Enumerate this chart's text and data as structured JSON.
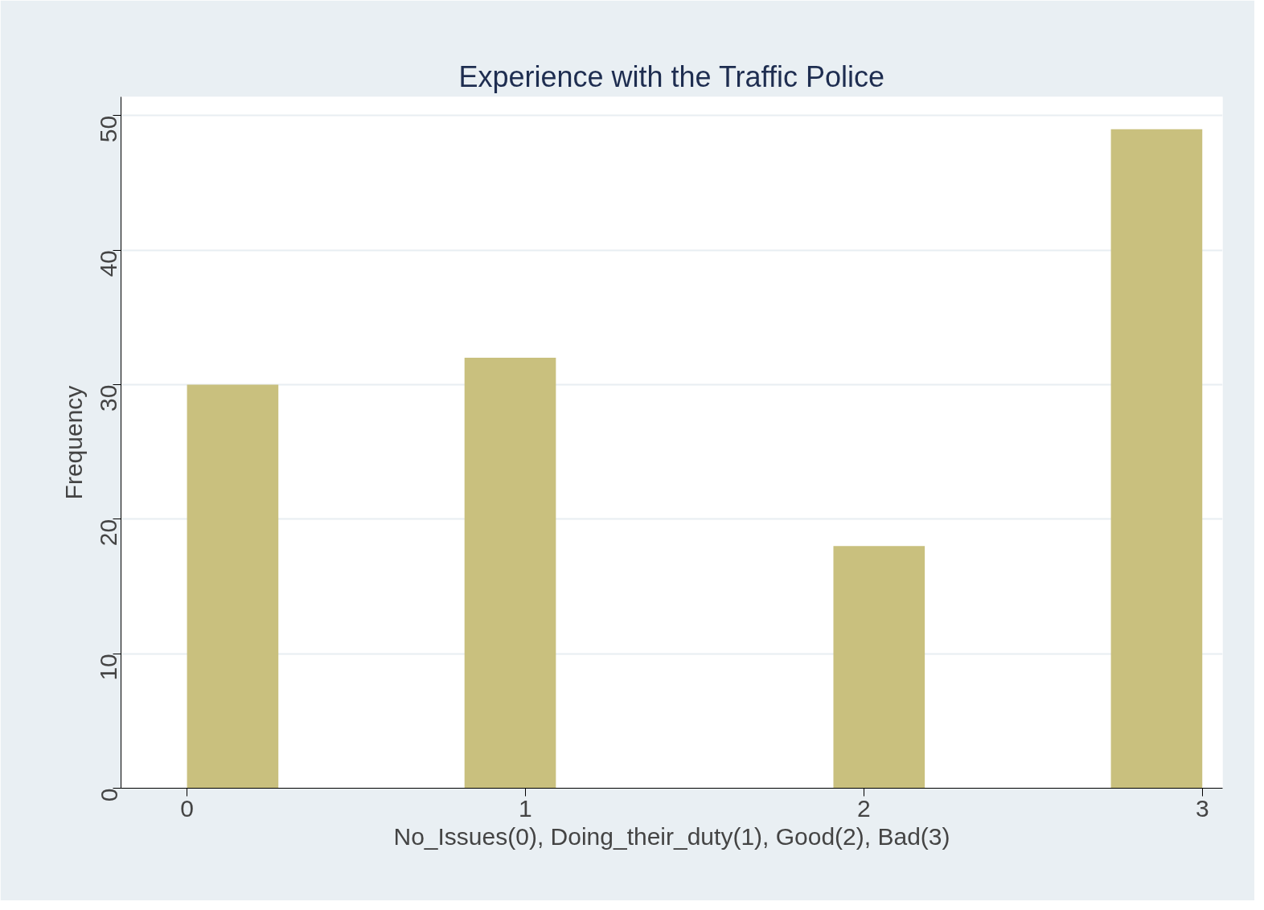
{
  "chart_data": {
    "type": "histogram",
    "title": "Experience with the Traffic Police",
    "xlabel": "No_Issues(0), Doing_their_duty(1), Good(2), Bad(3)",
    "ylabel": "Frequency",
    "bins": [
      0,
      0.27,
      0.82,
      1.09,
      1.91,
      2.18,
      2.73,
      3.0
    ],
    "values": [
      30,
      0,
      32,
      0,
      18,
      0,
      49
    ],
    "color": "#c9c07e",
    "xlim": [
      -0.195,
      3.06
    ],
    "ylim": [
      0,
      51.4
    ],
    "xticks": [
      0,
      1,
      2,
      3
    ],
    "yticks": [
      0,
      10,
      20,
      30,
      40,
      50
    ],
    "grid": "y"
  }
}
